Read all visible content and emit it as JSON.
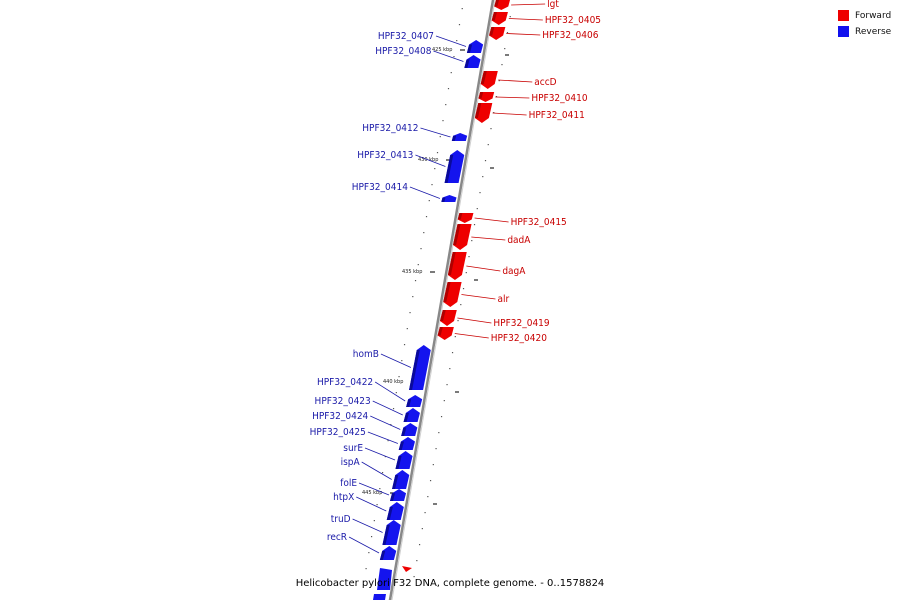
{
  "caption": "Helicobacter pylori F32 DNA, complete genome. - 0..1578824",
  "legend": [
    {
      "label": "Forward",
      "color": "#ee0000"
    },
    {
      "label": "Reverse",
      "color": "#1111ee"
    }
  ],
  "colors": {
    "forward": "#ee0000",
    "forward_dark": "#b00000",
    "reverse": "#1414ee",
    "reverse_dark": "#0a0a9a",
    "label_forward": "#c80000",
    "label_reverse": "#1a1aa8",
    "backbone": "#888888"
  },
  "coordinate_labels": [
    "425 kbp",
    "430 kbp",
    "435 kbp",
    "440 kbp",
    "445 kbp"
  ],
  "genes": [
    {
      "name": "lgt",
      "strand": "forward"
    },
    {
      "name": "HPF32_0405",
      "strand": "forward"
    },
    {
      "name": "HPF32_0406",
      "strand": "forward"
    },
    {
      "name": "HPF32_0407",
      "strand": "reverse"
    },
    {
      "name": "HPF32_0408",
      "strand": "reverse"
    },
    {
      "name": "accD",
      "strand": "forward"
    },
    {
      "name": "HPF32_0410",
      "strand": "forward"
    },
    {
      "name": "HPF32_0411",
      "strand": "forward"
    },
    {
      "name": "HPF32_0412",
      "strand": "reverse"
    },
    {
      "name": "HPF32_0413",
      "strand": "reverse"
    },
    {
      "name": "HPF32_0414",
      "strand": "reverse"
    },
    {
      "name": "HPF32_0415",
      "strand": "forward"
    },
    {
      "name": "dadA",
      "strand": "forward"
    },
    {
      "name": "dagA",
      "strand": "forward"
    },
    {
      "name": "alr",
      "strand": "forward"
    },
    {
      "name": "HPF32_0419",
      "strand": "forward"
    },
    {
      "name": "HPF32_0420",
      "strand": "forward"
    },
    {
      "name": "homB",
      "strand": "reverse"
    },
    {
      "name": "HPF32_0422",
      "strand": "reverse"
    },
    {
      "name": "HPF32_0423",
      "strand": "reverse"
    },
    {
      "name": "HPF32_0424",
      "strand": "reverse"
    },
    {
      "name": "HPF32_0425",
      "strand": "reverse"
    },
    {
      "name": "surE",
      "strand": "reverse"
    },
    {
      "name": "ispA",
      "strand": "reverse"
    },
    {
      "name": "folE",
      "strand": "reverse"
    },
    {
      "name": "htpX",
      "strand": "reverse"
    },
    {
      "name": "truD",
      "strand": "reverse"
    },
    {
      "name": "recR",
      "strand": "reverse"
    }
  ]
}
